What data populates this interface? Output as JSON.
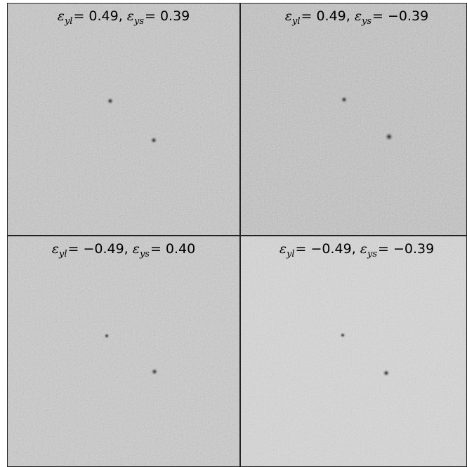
{
  "panels": [
    {
      "terms": [
        {
          "symbol": "ε",
          "subscript": "yl",
          "value": "= 0.49,"
        },
        {
          "symbol": "ε",
          "subscript": "ys",
          "value": "= 0.39"
        }
      ]
    },
    {
      "terms": [
        {
          "symbol": "ε",
          "subscript": "yl",
          "value": "= 0.49,"
        },
        {
          "symbol": "ε",
          "subscript": "ys",
          "value": "= −0.39"
        }
      ]
    },
    {
      "terms": [
        {
          "symbol": "ε",
          "subscript": "yl",
          "value": "= −0.49,"
        },
        {
          "symbol": "ε",
          "subscript": "ys",
          "value": "= 0.40"
        }
      ]
    },
    {
      "terms": [
        {
          "symbol": "ε",
          "subscript": "yl",
          "value": "= −0.49,"
        },
        {
          "symbol": "ε",
          "subscript": "ys",
          "value": "= −0.39"
        }
      ]
    }
  ]
}
